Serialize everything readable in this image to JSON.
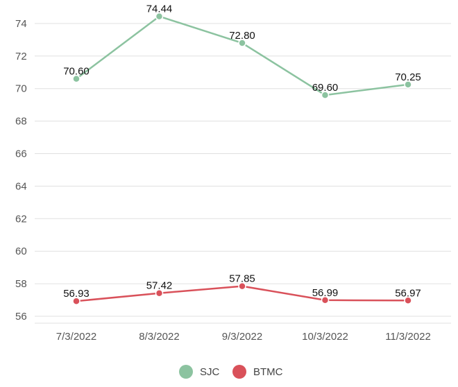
{
  "chart_data": {
    "type": "line",
    "title": "",
    "xlabel": "",
    "ylabel": "",
    "categories": [
      "7/3/2022",
      "8/3/2022",
      "9/3/2022",
      "10/3/2022",
      "11/3/2022"
    ],
    "ylim": [
      55,
      75
    ],
    "yticks": [
      56,
      58,
      60,
      62,
      64,
      66,
      68,
      70,
      72,
      74
    ],
    "grid": true,
    "legend_position": "bottom",
    "series": [
      {
        "name": "SJC",
        "color": "#8cc3a0",
        "values": [
          70.6,
          74.44,
          72.8,
          69.6,
          70.25
        ],
        "labels": [
          "70.60",
          "74.44",
          "72.80",
          "69.60",
          "70.25"
        ]
      },
      {
        "name": "BTMC",
        "color": "#d9515a",
        "values": [
          56.93,
          57.42,
          57.85,
          56.99,
          56.97
        ],
        "labels": [
          "56.93",
          "57.42",
          "57.85",
          "56.99",
          "56.97"
        ]
      }
    ]
  }
}
